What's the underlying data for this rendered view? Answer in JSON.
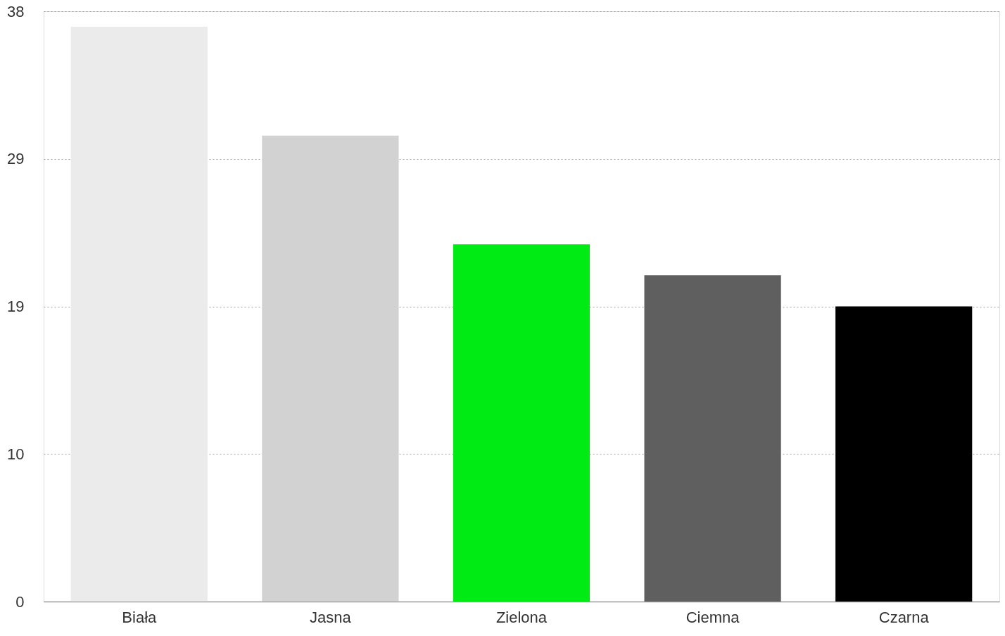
{
  "chart_data": {
    "type": "bar",
    "categories": [
      "Biała",
      "Jasna",
      "Zielona",
      "Ciemna",
      "Czarna"
    ],
    "values": [
      37,
      30,
      23,
      21,
      19
    ],
    "colors": [
      "#ebebeb",
      "#d2d2d2",
      "#00eb14",
      "#5f5f5f",
      "#000000"
    ],
    "ylim": [
      0,
      38
    ],
    "yticks": [
      0,
      {
        "value": 9.5,
        "label": "10"
      },
      19,
      {
        "value": 28.5,
        "label": "29"
      },
      38
    ],
    "grid": "y"
  }
}
